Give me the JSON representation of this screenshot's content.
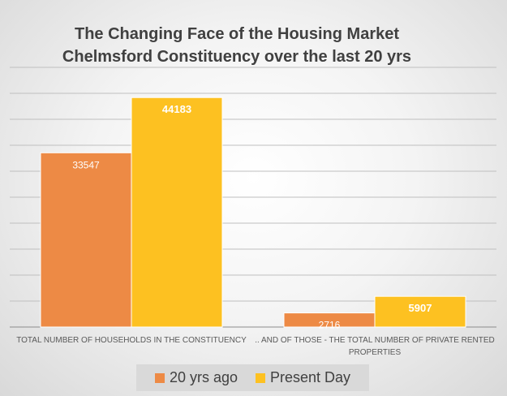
{
  "chart_data": {
    "type": "bar",
    "title_line1": "The Changing Face of the Housing Market",
    "title_line2": "Chelmsford Constituency over the last 20 yrs",
    "categories": [
      "TOTAL NUMBER OF HOUSEHOLDS IN THE CONSTITUENCY",
      ".. AND OF THOSE - THE TOTAL NUMBER OF PRIVATE RENTED PROPERTIES"
    ],
    "category_lines": [
      [
        "TOTAL NUMBER OF HOUSEHOLDS IN THE CONSTITUENCY"
      ],
      [
        ".. AND OF THOSE - THE TOTAL NUMBER OF PRIVATE RENTED",
        "PROPERTIES"
      ]
    ],
    "series": [
      {
        "name": "20 yrs ago",
        "values": [
          33547,
          2716
        ],
        "color": "#ed8a45"
      },
      {
        "name": "Present Day",
        "values": [
          44183,
          5907
        ],
        "color": "#fdc121"
      }
    ],
    "ylim": [
      0,
      50000
    ],
    "grid": true,
    "legend_position": "bottom",
    "data_labels": true
  }
}
